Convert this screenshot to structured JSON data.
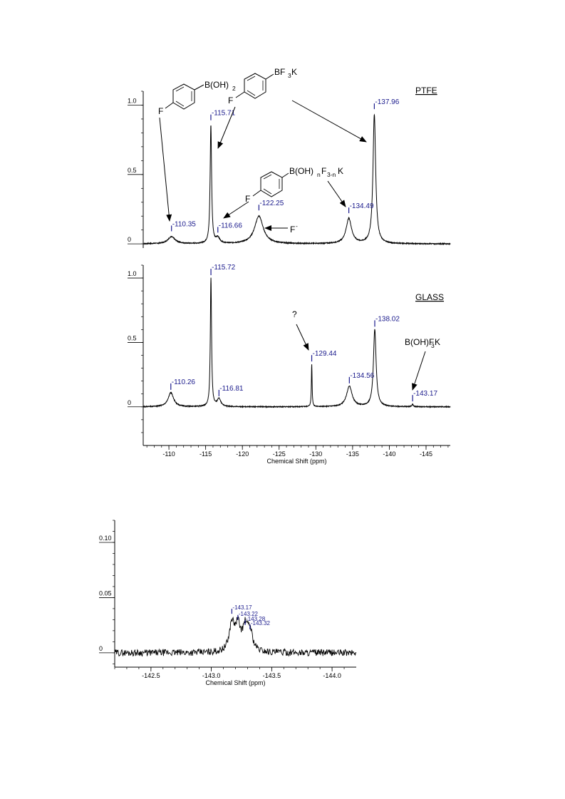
{
  "chart_data": [
    {
      "type": "line",
      "panel": "top",
      "title": "PTFE",
      "xlabel": "",
      "ylabel": "",
      "xlim": [
        -106.5,
        -148.3
      ],
      "ylim": [
        -0.03,
        1.1
      ],
      "yticks": [
        0,
        0.5,
        1.0
      ],
      "ytick_labels": [
        "0",
        "0.5",
        "1.0"
      ],
      "peaks": [
        {
          "x": -110.35,
          "y": 0.05,
          "w": 0.6,
          "label": "-110.35"
        },
        {
          "x": -115.71,
          "y": 0.85,
          "w": 0.12,
          "label": "-115.71"
        },
        {
          "x": -116.66,
          "y": 0.04,
          "w": 0.3,
          "label": "-116.66"
        },
        {
          "x": -122.25,
          "y": 0.2,
          "w": 0.7,
          "label": "-122.25"
        },
        {
          "x": -134.49,
          "y": 0.18,
          "w": 0.45,
          "label": "-134.49"
        },
        {
          "x": -137.96,
          "y": 0.93,
          "w": 0.22,
          "label": "-137.96"
        }
      ],
      "annotations": [
        {
          "text": "B(OH)2",
          "target": "-115.71"
        },
        {
          "text": "BF3K",
          "target": "-137.96"
        },
        {
          "text": "B(OH)nF3-nK",
          "target": "-116.66, -134.49"
        },
        {
          "text": "F-",
          "target": "-122.25"
        }
      ]
    },
    {
      "type": "line",
      "panel": "middle",
      "title": "GLASS",
      "xlabel": "Chemical Shift (ppm)",
      "ylabel": "",
      "xlim": [
        -106.5,
        -148.3
      ],
      "ylim": [
        -0.3,
        1.1
      ],
      "xticks": [
        -110,
        -115,
        -120,
        -125,
        -130,
        -135,
        -140,
        -145
      ],
      "xtick_labels": [
        "-110",
        "-115",
        "-120",
        "-125",
        "-130",
        "-135",
        "-140",
        "-145"
      ],
      "yticks": [
        0,
        0.5,
        1.0
      ],
      "ytick_labels": [
        "0",
        "0.5",
        "1.0"
      ],
      "peaks": [
        {
          "x": -110.26,
          "y": 0.11,
          "w": 0.45,
          "label": "-110.26"
        },
        {
          "x": -115.72,
          "y": 1.0,
          "w": 0.1,
          "label": "-115.72"
        },
        {
          "x": -116.81,
          "y": 0.06,
          "w": 0.3,
          "label": "-116.81"
        },
        {
          "x": -129.44,
          "y": 0.33,
          "w": 0.06,
          "label": "-129.44"
        },
        {
          "x": -134.56,
          "y": 0.16,
          "w": 0.45,
          "label": "-134.56"
        },
        {
          "x": -138.02,
          "y": 0.6,
          "w": 0.22,
          "label": "-138.02"
        },
        {
          "x": -143.17,
          "y": 0.02,
          "w": 0.1,
          "label": "-143.17"
        }
      ],
      "annotations": [
        {
          "text": "?",
          "target": "-129.44"
        },
        {
          "text": "B(OH)F3K",
          "target": "-143.17"
        }
      ]
    },
    {
      "type": "line",
      "panel": "inset",
      "title": "",
      "xlabel": "Chemical Shift (ppm)",
      "ylabel": "",
      "xlim": [
        -142.2,
        -144.2
      ],
      "ylim": [
        -0.013,
        0.12
      ],
      "xticks": [
        -142.5,
        -143.0,
        -143.5,
        -144.0
      ],
      "xtick_labels": [
        "-142.5",
        "-143.0",
        "-143.5",
        "-144.0"
      ],
      "yticks": [
        0,
        0.05,
        0.1
      ],
      "ytick_labels": [
        "0",
        "0.05",
        "0.10"
      ],
      "peaks": [
        {
          "x": -143.17,
          "y": 0.025,
          "w": 0.025,
          "label": "-143.17"
        },
        {
          "x": -143.22,
          "y": 0.022,
          "w": 0.025,
          "label": "-143.22"
        },
        {
          "x": -143.28,
          "y": 0.02,
          "w": 0.025,
          "label": "-143.28"
        },
        {
          "x": -143.32,
          "y": 0.018,
          "w": 0.025,
          "label": "-143.32"
        }
      ]
    }
  ],
  "structures": {
    "boronic_acid": {
      "f": "F",
      "group": "B(OH)",
      "sub": "2"
    },
    "trifluoroborate": {
      "f": "F",
      "group": "BF",
      "sub": "3",
      "tail": "K"
    },
    "mixed": {
      "f": "F",
      "group": "B(OH)",
      "sub1": "n",
      "mid": "F",
      "sub2": "3-n",
      "tail": "K"
    },
    "fluoride": {
      "text": "F",
      "sup": "-"
    },
    "unknown": {
      "text": "?"
    },
    "hydroxy_trifluoroborate": {
      "text": "B(OH)F",
      "sub": "3",
      "tail": "K"
    }
  }
}
